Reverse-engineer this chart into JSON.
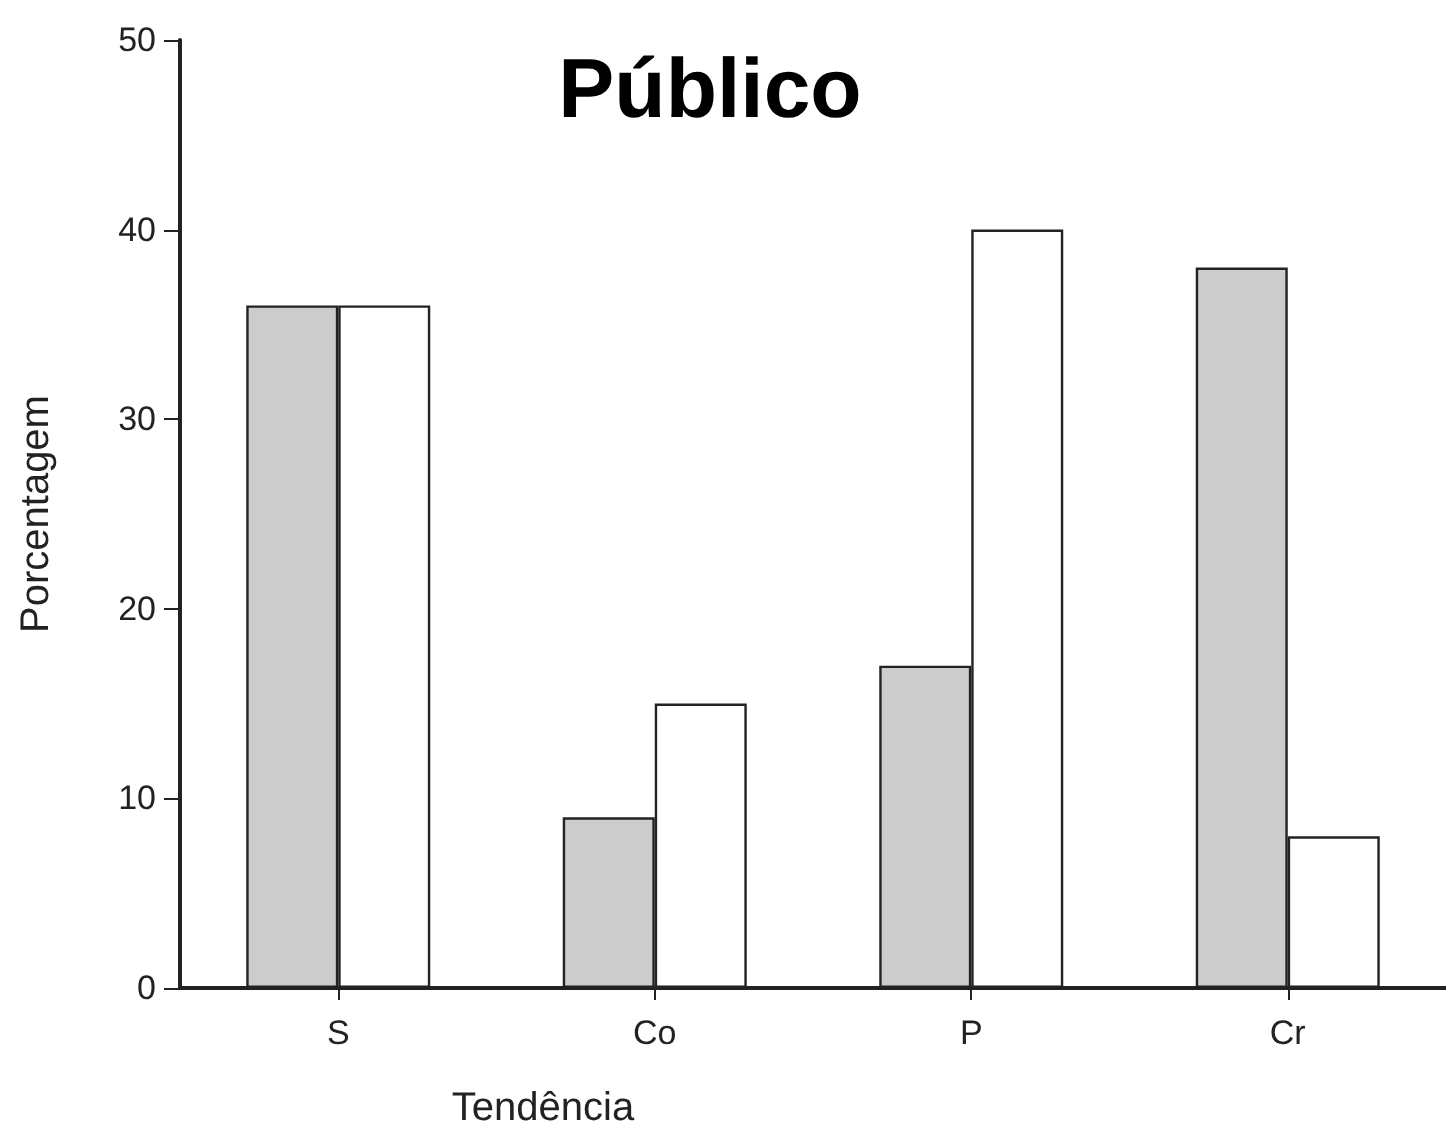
{
  "chart_data": {
    "type": "bar",
    "title": "Público",
    "xlabel": "Tendência",
    "ylabel": "Porcentagem",
    "categories": [
      "S",
      "Co",
      "P",
      "Cr"
    ],
    "series": [
      {
        "color": "#cccccc",
        "values": [
          36,
          9,
          17,
          38
        ]
      },
      {
        "color": "#ffffff",
        "values": [
          36,
          15,
          40,
          8
        ]
      }
    ],
    "ylim": [
      0,
      50
    ],
    "yticks": [
      0,
      10,
      20,
      30,
      40,
      50
    ],
    "grid": false
  }
}
